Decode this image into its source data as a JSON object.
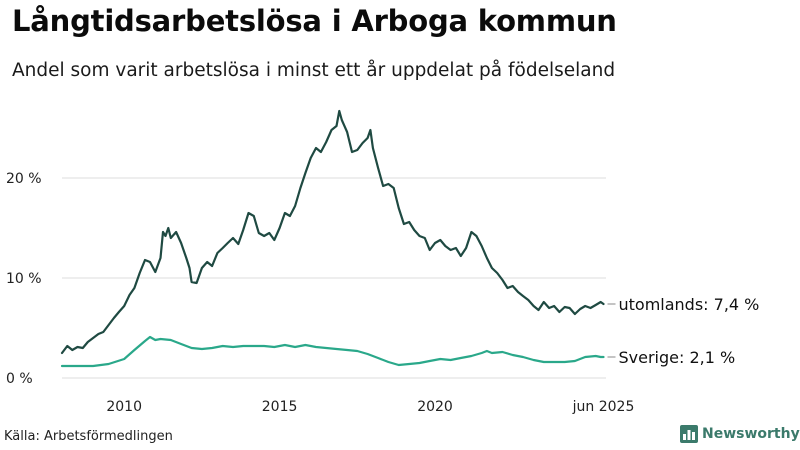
{
  "header": {
    "title": "Långtidsarbetslösa i Arboga kommun",
    "subtitle": "Andel som varit arbetslösa i minst ett år uppdelat på födelseland"
  },
  "footer": {
    "source": "Källa: Arbetsförmedlingen",
    "brand": "Newsworthy"
  },
  "colors": {
    "utomlands": "#1f4a42",
    "sverige": "#2aa88a",
    "grid": "#dcdcdc",
    "brand": "#3b7a6b"
  },
  "chart_data": {
    "type": "line",
    "title": "Långtidsarbetslösa i Arboga kommun",
    "subtitle": "Andel som varit arbetslösa i minst ett år uppdelat på födelseland",
    "xlabel": "",
    "ylabel": "",
    "x_range": [
      2008.0,
      2025.5
    ],
    "ylim": [
      0,
      28
    ],
    "grid": true,
    "y_ticks": [
      {
        "value": 0,
        "label": "0 %"
      },
      {
        "value": 10,
        "label": "10 %"
      },
      {
        "value": 20,
        "label": "20 %"
      }
    ],
    "x_ticks": [
      {
        "value": 2010,
        "label": "2010"
      },
      {
        "value": 2015,
        "label": "2015"
      },
      {
        "value": 2020,
        "label": "2020"
      },
      {
        "value": 2025.42,
        "label": "jun 2025"
      }
    ],
    "series": [
      {
        "name": "utomlands",
        "end_label": "utomlands: 7,4 %",
        "color": "#1f4a42",
        "points": [
          [
            2008.0,
            2.5
          ],
          [
            2008.17,
            3.2
          ],
          [
            2008.33,
            2.8
          ],
          [
            2008.5,
            3.1
          ],
          [
            2008.67,
            3.0
          ],
          [
            2008.83,
            3.6
          ],
          [
            2009.0,
            4.0
          ],
          [
            2009.17,
            4.4
          ],
          [
            2009.33,
            4.6
          ],
          [
            2009.5,
            5.3
          ],
          [
            2009.67,
            6.0
          ],
          [
            2009.83,
            6.6
          ],
          [
            2010.0,
            7.2
          ],
          [
            2010.17,
            8.3
          ],
          [
            2010.33,
            9.0
          ],
          [
            2010.5,
            10.5
          ],
          [
            2010.67,
            11.8
          ],
          [
            2010.83,
            11.6
          ],
          [
            2011.0,
            10.6
          ],
          [
            2011.17,
            12.0
          ],
          [
            2011.25,
            14.6
          ],
          [
            2011.33,
            14.2
          ],
          [
            2011.42,
            15.0
          ],
          [
            2011.5,
            14.0
          ],
          [
            2011.67,
            14.6
          ],
          [
            2011.83,
            13.5
          ],
          [
            2012.0,
            12.0
          ],
          [
            2012.1,
            11.0
          ],
          [
            2012.17,
            9.6
          ],
          [
            2012.33,
            9.5
          ],
          [
            2012.5,
            11.0
          ],
          [
            2012.67,
            11.6
          ],
          [
            2012.83,
            11.2
          ],
          [
            2013.0,
            12.5
          ],
          [
            2013.17,
            13.0
          ],
          [
            2013.33,
            13.5
          ],
          [
            2013.5,
            14.0
          ],
          [
            2013.67,
            13.4
          ],
          [
            2013.83,
            14.8
          ],
          [
            2014.0,
            16.5
          ],
          [
            2014.17,
            16.2
          ],
          [
            2014.33,
            14.5
          ],
          [
            2014.5,
            14.2
          ],
          [
            2014.67,
            14.5
          ],
          [
            2014.83,
            13.8
          ],
          [
            2015.0,
            15.0
          ],
          [
            2015.17,
            16.5
          ],
          [
            2015.33,
            16.2
          ],
          [
            2015.5,
            17.2
          ],
          [
            2015.67,
            19.0
          ],
          [
            2015.83,
            20.5
          ],
          [
            2016.0,
            22.0
          ],
          [
            2016.17,
            23.0
          ],
          [
            2016.33,
            22.6
          ],
          [
            2016.5,
            23.6
          ],
          [
            2016.67,
            24.8
          ],
          [
            2016.83,
            25.2
          ],
          [
            2016.92,
            26.7
          ],
          [
            2017.0,
            25.8
          ],
          [
            2017.17,
            24.6
          ],
          [
            2017.33,
            22.6
          ],
          [
            2017.5,
            22.8
          ],
          [
            2017.67,
            23.5
          ],
          [
            2017.83,
            24.0
          ],
          [
            2017.92,
            24.8
          ],
          [
            2018.0,
            23.0
          ],
          [
            2018.17,
            21.0
          ],
          [
            2018.33,
            19.2
          ],
          [
            2018.5,
            19.4
          ],
          [
            2018.67,
            19.0
          ],
          [
            2018.83,
            17.0
          ],
          [
            2019.0,
            15.4
          ],
          [
            2019.17,
            15.6
          ],
          [
            2019.33,
            14.8
          ],
          [
            2019.5,
            14.2
          ],
          [
            2019.67,
            14.0
          ],
          [
            2019.83,
            12.8
          ],
          [
            2020.0,
            13.5
          ],
          [
            2020.17,
            13.8
          ],
          [
            2020.33,
            13.2
          ],
          [
            2020.5,
            12.8
          ],
          [
            2020.67,
            13.0
          ],
          [
            2020.83,
            12.2
          ],
          [
            2021.0,
            13.0
          ],
          [
            2021.17,
            14.6
          ],
          [
            2021.33,
            14.2
          ],
          [
            2021.5,
            13.2
          ],
          [
            2021.67,
            12.0
          ],
          [
            2021.83,
            11.0
          ],
          [
            2022.0,
            10.5
          ],
          [
            2022.17,
            9.8
          ],
          [
            2022.33,
            9.0
          ],
          [
            2022.5,
            9.2
          ],
          [
            2022.67,
            8.6
          ],
          [
            2022.83,
            8.2
          ],
          [
            2023.0,
            7.8
          ],
          [
            2023.17,
            7.2
          ],
          [
            2023.33,
            6.8
          ],
          [
            2023.5,
            7.6
          ],
          [
            2023.67,
            7.0
          ],
          [
            2023.83,
            7.2
          ],
          [
            2024.0,
            6.6
          ],
          [
            2024.17,
            7.1
          ],
          [
            2024.33,
            7.0
          ],
          [
            2024.5,
            6.4
          ],
          [
            2024.67,
            6.9
          ],
          [
            2024.83,
            7.2
          ],
          [
            2025.0,
            7.0
          ],
          [
            2025.17,
            7.3
          ],
          [
            2025.33,
            7.6
          ],
          [
            2025.42,
            7.4
          ]
        ]
      },
      {
        "name": "Sverige",
        "end_label": "Sverige: 2,1 %",
        "color": "#2aa88a",
        "points": [
          [
            2008.0,
            1.2
          ],
          [
            2008.5,
            1.2
          ],
          [
            2009.0,
            1.2
          ],
          [
            2009.5,
            1.4
          ],
          [
            2010.0,
            1.9
          ],
          [
            2010.33,
            2.8
          ],
          [
            2010.67,
            3.7
          ],
          [
            2010.83,
            4.1
          ],
          [
            2011.0,
            3.8
          ],
          [
            2011.17,
            3.9
          ],
          [
            2011.5,
            3.8
          ],
          [
            2011.83,
            3.4
          ],
          [
            2012.17,
            3.0
          ],
          [
            2012.5,
            2.9
          ],
          [
            2012.83,
            3.0
          ],
          [
            2013.17,
            3.2
          ],
          [
            2013.5,
            3.1
          ],
          [
            2013.83,
            3.2
          ],
          [
            2014.17,
            3.2
          ],
          [
            2014.5,
            3.2
          ],
          [
            2014.83,
            3.1
          ],
          [
            2015.17,
            3.3
          ],
          [
            2015.5,
            3.1
          ],
          [
            2015.83,
            3.3
          ],
          [
            2016.17,
            3.1
          ],
          [
            2016.5,
            3.0
          ],
          [
            2016.83,
            2.9
          ],
          [
            2017.17,
            2.8
          ],
          [
            2017.5,
            2.7
          ],
          [
            2017.83,
            2.4
          ],
          [
            2018.17,
            2.0
          ],
          [
            2018.5,
            1.6
          ],
          [
            2018.83,
            1.3
          ],
          [
            2019.17,
            1.4
          ],
          [
            2019.5,
            1.5
          ],
          [
            2019.83,
            1.7
          ],
          [
            2020.17,
            1.9
          ],
          [
            2020.5,
            1.8
          ],
          [
            2020.83,
            2.0
          ],
          [
            2021.17,
            2.2
          ],
          [
            2021.5,
            2.5
          ],
          [
            2021.67,
            2.7
          ],
          [
            2021.83,
            2.5
          ],
          [
            2022.17,
            2.6
          ],
          [
            2022.5,
            2.3
          ],
          [
            2022.83,
            2.1
          ],
          [
            2023.17,
            1.8
          ],
          [
            2023.5,
            1.6
          ],
          [
            2023.83,
            1.6
          ],
          [
            2024.17,
            1.6
          ],
          [
            2024.5,
            1.7
          ],
          [
            2024.83,
            2.1
          ],
          [
            2025.17,
            2.2
          ],
          [
            2025.33,
            2.1
          ],
          [
            2025.42,
            2.1
          ]
        ]
      }
    ]
  }
}
